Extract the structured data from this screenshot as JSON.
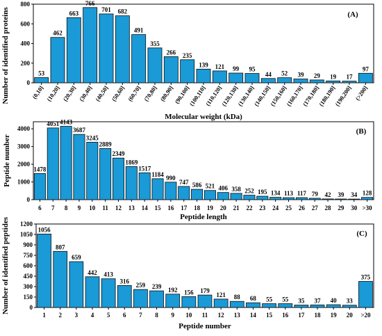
{
  "colors": {
    "bar_fill": "#1a9ad7",
    "bar_stroke": "#0d0d0d",
    "axis": "#000000"
  },
  "chart_data": [
    {
      "type": "bar",
      "panel_label": "(A)",
      "xlabel": "Molecular weight (kDa)",
      "ylabel": "Number of identified proteins",
      "ylim": [
        0,
        800
      ],
      "yticks": [
        "0",
        "200",
        "400",
        "600",
        "800"
      ],
      "categories": [
        "(0,10]",
        "(10,20]",
        "(20,30]",
        "(30,40]",
        "(40,50]",
        "(50,60]",
        "(60,70]",
        "(70,80]",
        "(80,90]",
        "(90,100]",
        "(100,110]",
        "(110,120]",
        "(120,130]",
        "(130,140]",
        "(140,150]",
        "(150,160]",
        "(160,170]",
        "(170,180]",
        "(180,190]",
        "(190,200]",
        "(>200]"
      ],
      "values": [
        53,
        462,
        663,
        766,
        701,
        682,
        491,
        355,
        266,
        235,
        139,
        121,
        99,
        95,
        44,
        52,
        39,
        29,
        19,
        17,
        97
      ]
    },
    {
      "type": "bar",
      "panel_label": "(B)",
      "xlabel": "Peptide length",
      "ylabel": "Peptide number",
      "ylim": [
        0,
        4400
      ],
      "yticks": [
        "0",
        "1000",
        "2000",
        "3000",
        "4000"
      ],
      "categories": [
        "6",
        "7",
        "8",
        "9",
        "10",
        "11",
        "12",
        "13",
        "14",
        "15",
        "16",
        "17",
        "18",
        "19",
        "20",
        "21",
        "22",
        "23",
        "24",
        "25",
        "26",
        "27",
        "28",
        "29",
        "30",
        ">30"
      ],
      "values": [
        1478,
        4051,
        4143,
        3687,
        3245,
        2889,
        2349,
        1869,
        1517,
        1184,
        990,
        747,
        586,
        521,
        406,
        358,
        252,
        195,
        134,
        113,
        117,
        79,
        42,
        39,
        34,
        128
      ]
    },
    {
      "type": "bar",
      "panel_label": "(C)",
      "xlabel": "Peptide number",
      "ylabel": "Number of identified peptides",
      "ylim": [
        0,
        1200
      ],
      "yticks": [
        "0",
        "150",
        "300",
        "450",
        "600",
        "750",
        "900",
        "1050",
        "1200"
      ],
      "categories": [
        "1",
        "2",
        "3",
        "4",
        "5",
        "6",
        "7",
        "8",
        "9",
        "10",
        "11",
        "12",
        "13",
        "14",
        "15",
        "16",
        "17",
        "18",
        "19",
        "20",
        ">20"
      ],
      "values": [
        1056,
        807,
        659,
        442,
        413,
        316,
        259,
        239,
        192,
        156,
        179,
        121,
        88,
        68,
        55,
        55,
        35,
        37,
        40,
        33,
        375
      ]
    }
  ]
}
